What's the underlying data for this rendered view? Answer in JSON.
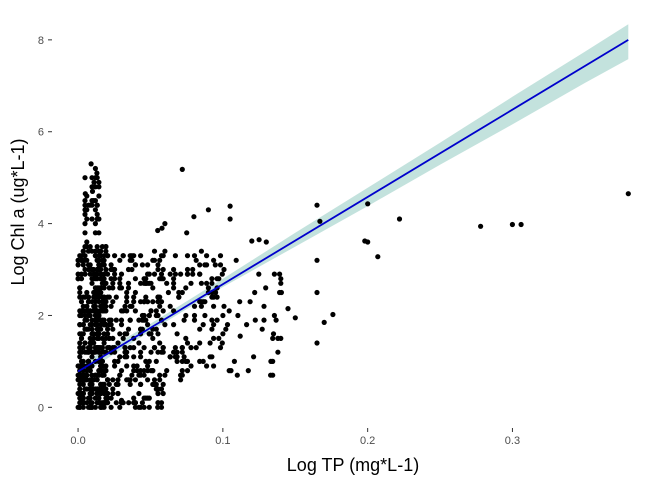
{
  "chart_data": {
    "type": "scatter",
    "title": "",
    "xlabel": "Log TP (mg*L-1)",
    "ylabel": "Log Chl a (ug*L-1)",
    "xlim": [
      -0.018,
      0.395
    ],
    "ylim": [
      -0.45,
      8.65
    ],
    "x_ticks": [
      0.0,
      0.1,
      0.2,
      0.3
    ],
    "x_tick_labels": [
      "0.0",
      "0.1",
      "0.2",
      "0.3"
    ],
    "y_ticks": [
      0,
      2,
      4,
      6,
      8
    ],
    "y_tick_labels": [
      "0",
      "2",
      "4",
      "6",
      "8"
    ],
    "grid": false,
    "legend": "none",
    "colors": {
      "points": "#000000",
      "fit_line": "#0000cc",
      "confidence_band": "#a9d6cf"
    },
    "fit": {
      "method": "linear",
      "intercept": 0.78,
      "slope": 19.0,
      "x_range": [
        0.0,
        0.38
      ],
      "band": [
        {
          "x": 0.0,
          "lower": 0.66,
          "upper": 0.9
        },
        {
          "x": 0.05,
          "lower": 1.66,
          "upper": 1.82
        },
        {
          "x": 0.1,
          "lower": 2.62,
          "upper": 2.8
        },
        {
          "x": 0.15,
          "lower": 3.5,
          "upper": 3.8
        },
        {
          "x": 0.2,
          "lower": 4.38,
          "upper": 4.78
        },
        {
          "x": 0.25,
          "lower": 5.28,
          "upper": 5.76
        },
        {
          "x": 0.3,
          "lower": 6.16,
          "upper": 6.76
        },
        {
          "x": 0.35,
          "lower": 7.06,
          "upper": 7.74
        },
        {
          "x": 0.38,
          "lower": 7.58,
          "upper": 8.34
        }
      ]
    },
    "points_sampled": {
      "note_free": true,
      "clusters": [
        {
          "x_min": 0.0,
          "x_max": 0.02,
          "y_min": 0.0,
          "y_max": 3.5,
          "count": 420
        },
        {
          "x_min": 0.005,
          "x_max": 0.015,
          "y_min": 3.5,
          "y_max": 5.3,
          "count": 40
        },
        {
          "x_min": 0.02,
          "x_max": 0.06,
          "y_min": 0.0,
          "y_max": 3.4,
          "count": 260
        },
        {
          "x_min": 0.06,
          "x_max": 0.1,
          "y_min": 0.6,
          "y_max": 3.4,
          "count": 110
        },
        {
          "x_min": 0.1,
          "x_max": 0.14,
          "y_min": 0.7,
          "y_max": 3.3,
          "count": 30
        }
      ]
    },
    "points": [
      [
        0.009,
        5.3
      ],
      [
        0.013,
        5.1
      ],
      [
        0.011,
        4.9
      ],
      [
        0.01,
        4.7
      ],
      [
        0.005,
        4.65
      ],
      [
        0.072,
        5.18
      ],
      [
        0.08,
        4.15
      ],
      [
        0.09,
        4.3
      ],
      [
        0.105,
        4.38
      ],
      [
        0.105,
        4.1
      ],
      [
        0.06,
        4.0
      ],
      [
        0.058,
        3.9
      ],
      [
        0.055,
        3.85
      ],
      [
        0.075,
        3.8
      ],
      [
        0.125,
        3.65
      ],
      [
        0.13,
        3.6
      ],
      [
        0.12,
        3.62
      ],
      [
        0.165,
        4.4
      ],
      [
        0.167,
        4.05
      ],
      [
        0.2,
        4.43
      ],
      [
        0.198,
        3.62
      ],
      [
        0.2,
        3.6
      ],
      [
        0.207,
        3.28
      ],
      [
        0.222,
        4.1
      ],
      [
        0.278,
        3.94
      ],
      [
        0.3,
        3.98
      ],
      [
        0.306,
        3.98
      ],
      [
        0.38,
        4.65
      ],
      [
        0.165,
        3.2
      ],
      [
        0.14,
        2.8
      ],
      [
        0.14,
        2.7
      ],
      [
        0.145,
        2.15
      ],
      [
        0.15,
        1.95
      ],
      [
        0.17,
        1.85
      ],
      [
        0.176,
        2.02
      ],
      [
        0.165,
        2.5
      ],
      [
        0.165,
        1.4
      ],
      [
        0.14,
        1.5
      ],
      [
        0.135,
        1.6
      ],
      [
        0.133,
        0.7
      ],
      [
        0.138,
        1.5
      ],
      [
        0.112,
        1.55
      ],
      [
        0.11,
        0.7
      ],
      [
        0.108,
        1.0
      ],
      [
        0.102,
        1.7
      ],
      [
        0.1,
        1.6
      ],
      [
        0.1,
        2.0
      ],
      [
        0.095,
        2.5
      ],
      [
        0.09,
        2.6
      ],
      [
        0.085,
        2.3
      ],
      [
        0.122,
        2.5
      ],
      [
        0.055,
        0.0
      ],
      [
        0.035,
        0.1
      ],
      [
        0.03,
        0.15
      ]
    ]
  }
}
